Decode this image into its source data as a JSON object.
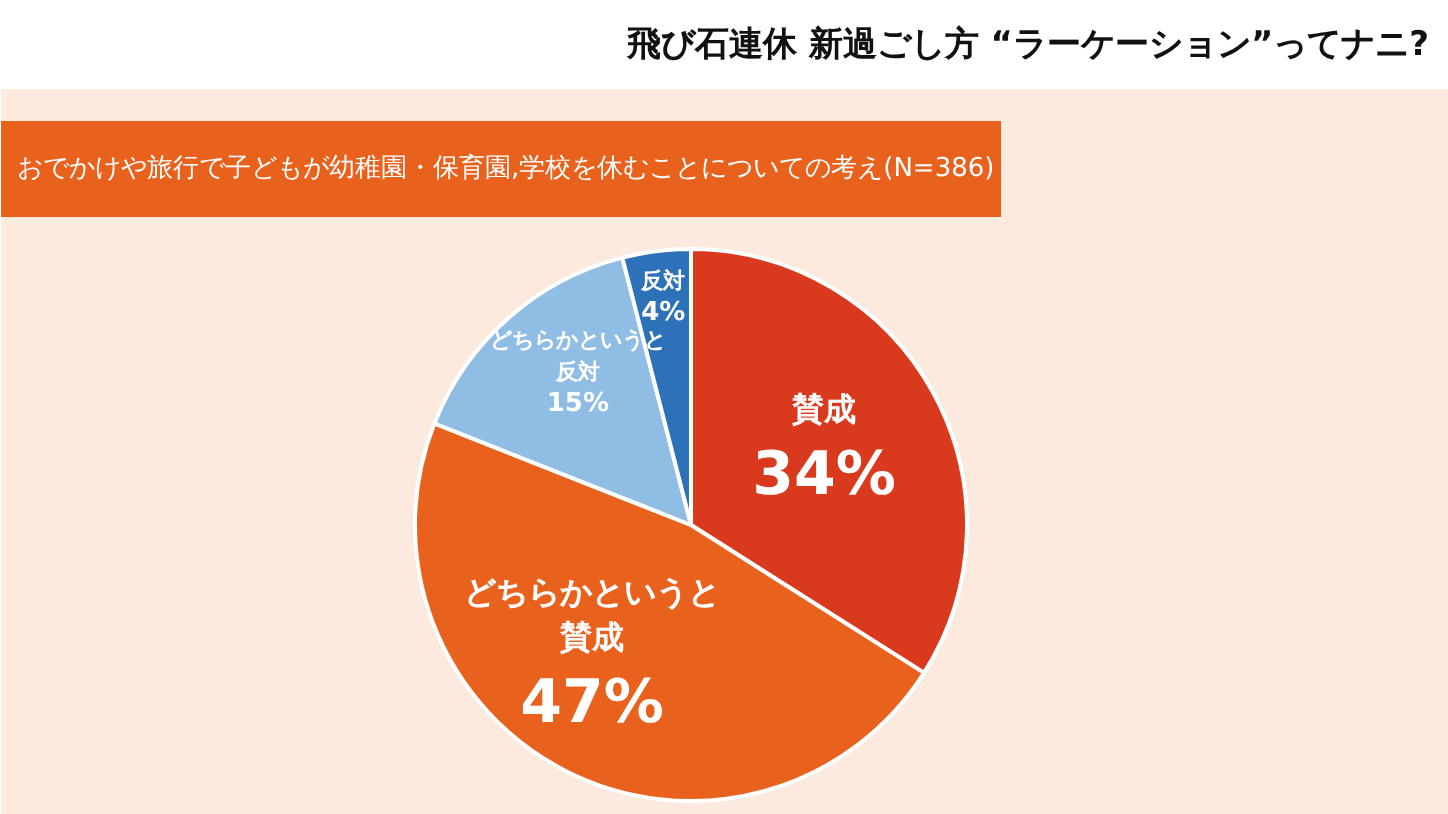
{
  "chart_data": {
    "type": "pie",
    "title": "飛び石連休 新過ごし方 “ラーケーション”ってナニ?",
    "subtitle": "おでかけや旅行で子どもが幼稚園・保育園,学校を休むことについての考え(N=386)",
    "categories": [
      "賛成",
      "どちらかというと賛成",
      "どちらかというと反対",
      "反対"
    ],
    "values": [
      34,
      47,
      15,
      4
    ],
    "colors": [
      "#d93a1e",
      "#e8621e",
      "#8fbde3",
      "#2d72b8"
    ],
    "value_labels": [
      "34%",
      "47%",
      "15%",
      "4%"
    ]
  }
}
